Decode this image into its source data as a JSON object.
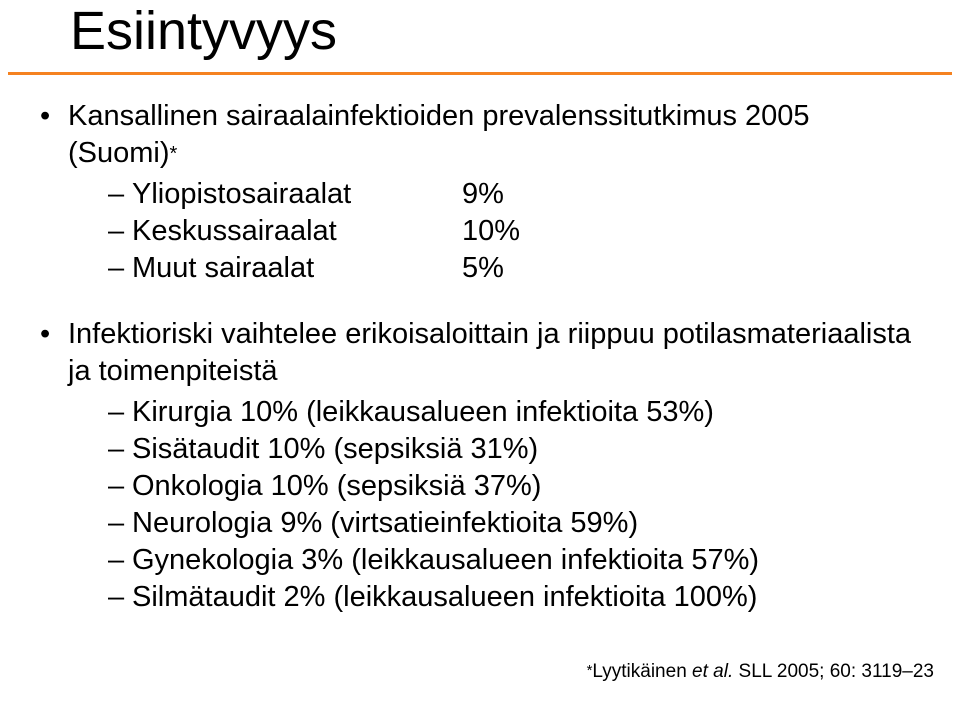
{
  "title": "Esiintyvyys",
  "rule_color": "#f58220",
  "bullets": {
    "b1": {
      "text_pre": "Kansallinen sairaalainfektioiden prevalenssitutkimus 2005 (Suomi)",
      "asterisk": "*",
      "rows": [
        {
          "label": "Yliopistosairaalat",
          "val": "9%"
        },
        {
          "label": "Keskussairaalat",
          "val": "10%"
        },
        {
          "label": "Muut sairaalat",
          "val": "5%"
        }
      ]
    },
    "b2": {
      "text": "Infektioriski vaihtelee erikoisaloittain ja riippuu potilasmateriaalista ja toimenpiteistä",
      "items": [
        "Kirurgia 10% (leikkausalueen infektioita 53%)",
        "Sisätaudit 10% (sepsiksiä 31%)",
        "Onkologia 10% (sepsiksiä 37%)",
        "Neurologia 9% (virtsatieinfektioita 59%)",
        "Gynekologia 3% (leikkausalueen infektioita 57%)",
        "Silmätaudit 2% (leikkausalueen infektioita 100%)"
      ]
    }
  },
  "footnote": {
    "asterisk": "*",
    "author": "Lyytikäinen ",
    "etal": "et al. ",
    "ref": "SLL 2005; 60: 3119–23"
  }
}
